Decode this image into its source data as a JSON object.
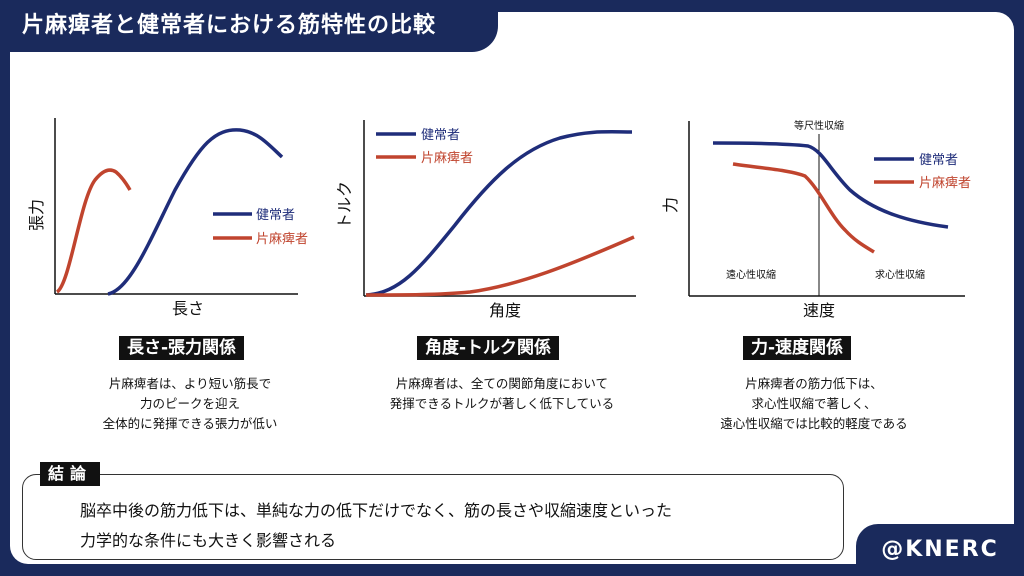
{
  "title": "片麻痺者と健常者における筋特性の比較",
  "colors": {
    "healthy": "#1f2d7a",
    "hemiplegic": "#c0442e",
    "navy": "#1a2a5c"
  },
  "charts": {
    "length_tension": {
      "ylabel": "張力",
      "xlabel": "長さ",
      "legend_healthy": "健常者",
      "legend_hemi": "片麻痺者",
      "badge": "長さ-張力関係",
      "desc": [
        "片麻痺者は、より短い筋長で",
        "力のピークを迎え",
        "全体的に発揮できる張力が低い"
      ]
    },
    "angle_torque": {
      "ylabel": "トルク",
      "xlabel": "角度",
      "legend_healthy": "健常者",
      "legend_hemi": "片麻痺者",
      "badge": "角度-トルク関係",
      "desc": [
        "片麻痺者は、全ての関節角度において",
        "発揮できるトルクが著しく低下している"
      ]
    },
    "force_velocity": {
      "ylabel": "力",
      "xlabel": "速度",
      "legend_healthy": "健常者",
      "legend_hemi": "片麻痺者",
      "isometric": "等尺性収縮",
      "eccentric": "遠心性収縮",
      "concentric": "求心性収縮",
      "badge": "力-速度関係",
      "desc": [
        "片麻痺者の筋力低下は、",
        "求心性収縮で著しく、",
        "遠心性収縮では比較的軽度である"
      ]
    }
  },
  "conclusion": {
    "label": "結論",
    "lines": [
      "脳卒中後の筋力低下は、単純な力の低下だけでなく、筋の長さや収縮速度といった",
      "力学的な条件にも大きく影響される"
    ]
  },
  "brand": "@KNERC"
}
